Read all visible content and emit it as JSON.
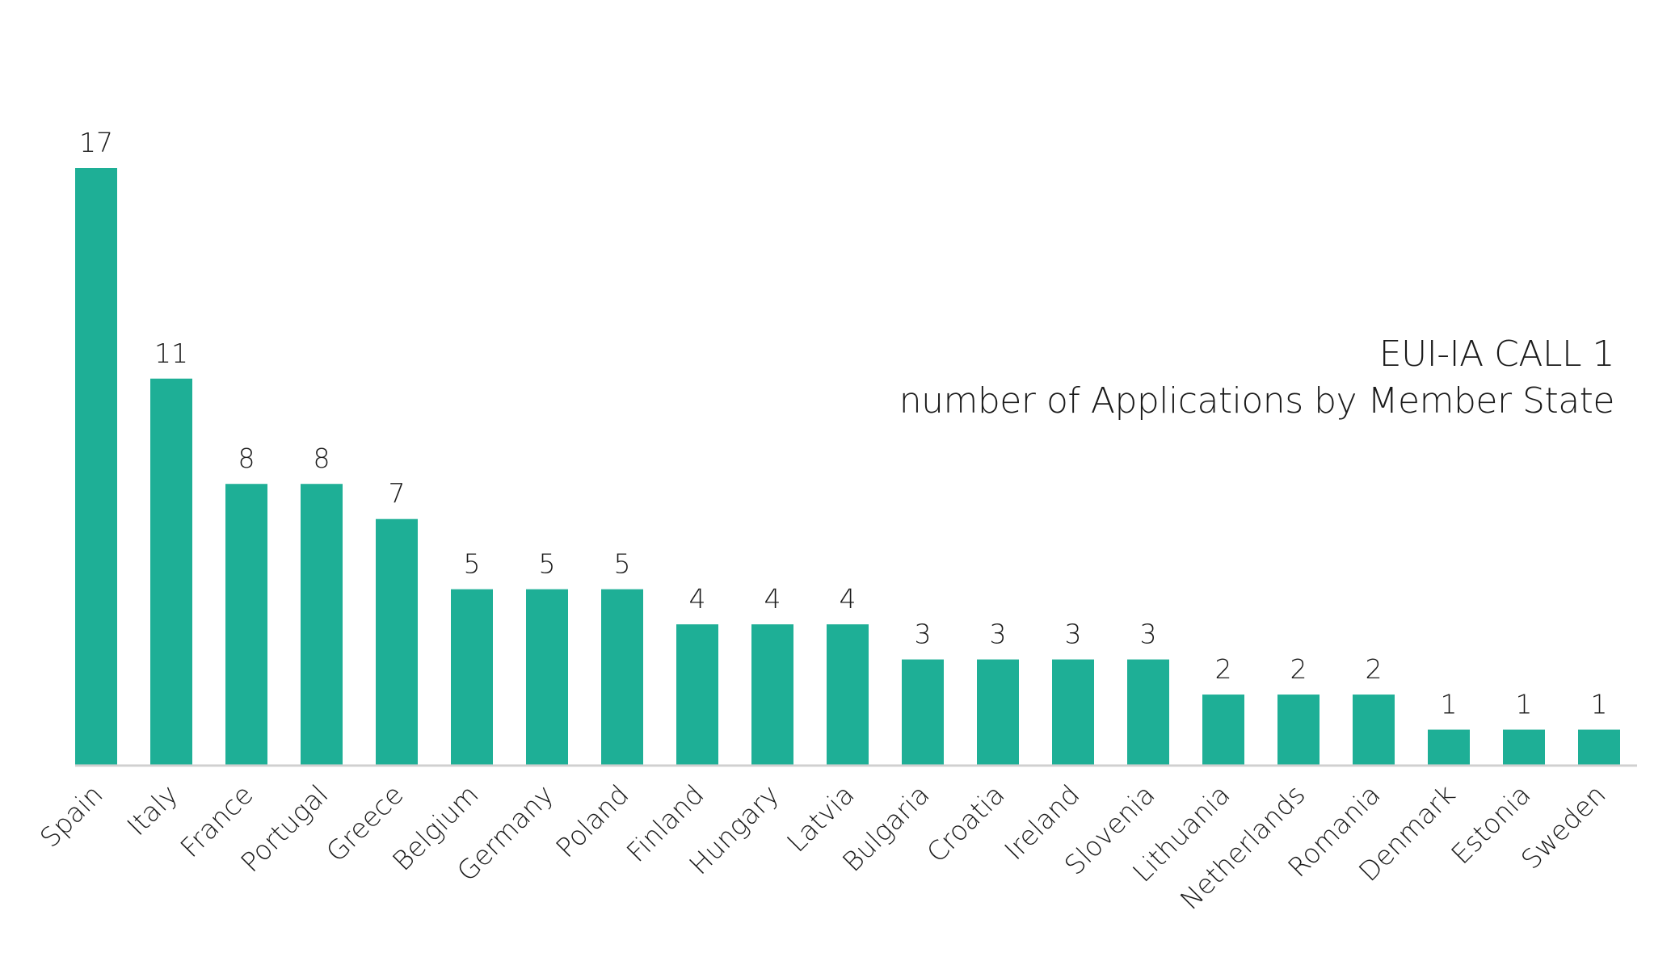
{
  "chart_data": {
    "type": "bar",
    "title": "EUI-IA CALL 1",
    "subtitle": "number of Applications by Member State",
    "xlabel": "",
    "ylabel": "",
    "categories": [
      "Spain",
      "Italy",
      "France",
      "Portugal",
      "Greece",
      "Belgium",
      "Germany",
      "Poland",
      "Finland",
      "Hungary",
      "Latvia",
      "Bulgaria",
      "Croatia",
      "Ireland",
      "Slovenia",
      "Lithuania",
      "Netherlands",
      "Romania",
      "Denmark",
      "Estonia",
      "Sweden"
    ],
    "values": [
      17,
      11,
      8,
      8,
      7,
      5,
      5,
      5,
      4,
      4,
      4,
      3,
      3,
      3,
      3,
      2,
      2,
      2,
      1,
      1,
      1
    ],
    "ylim": [
      0,
      17
    ],
    "grid": false,
    "legend": "none",
    "data_labels": true,
    "x_tick_rotation": "diagonal",
    "colors": {
      "bar": "#1eaf96",
      "axis": "#d0d0d0",
      "text": "#1a1a1a"
    }
  }
}
